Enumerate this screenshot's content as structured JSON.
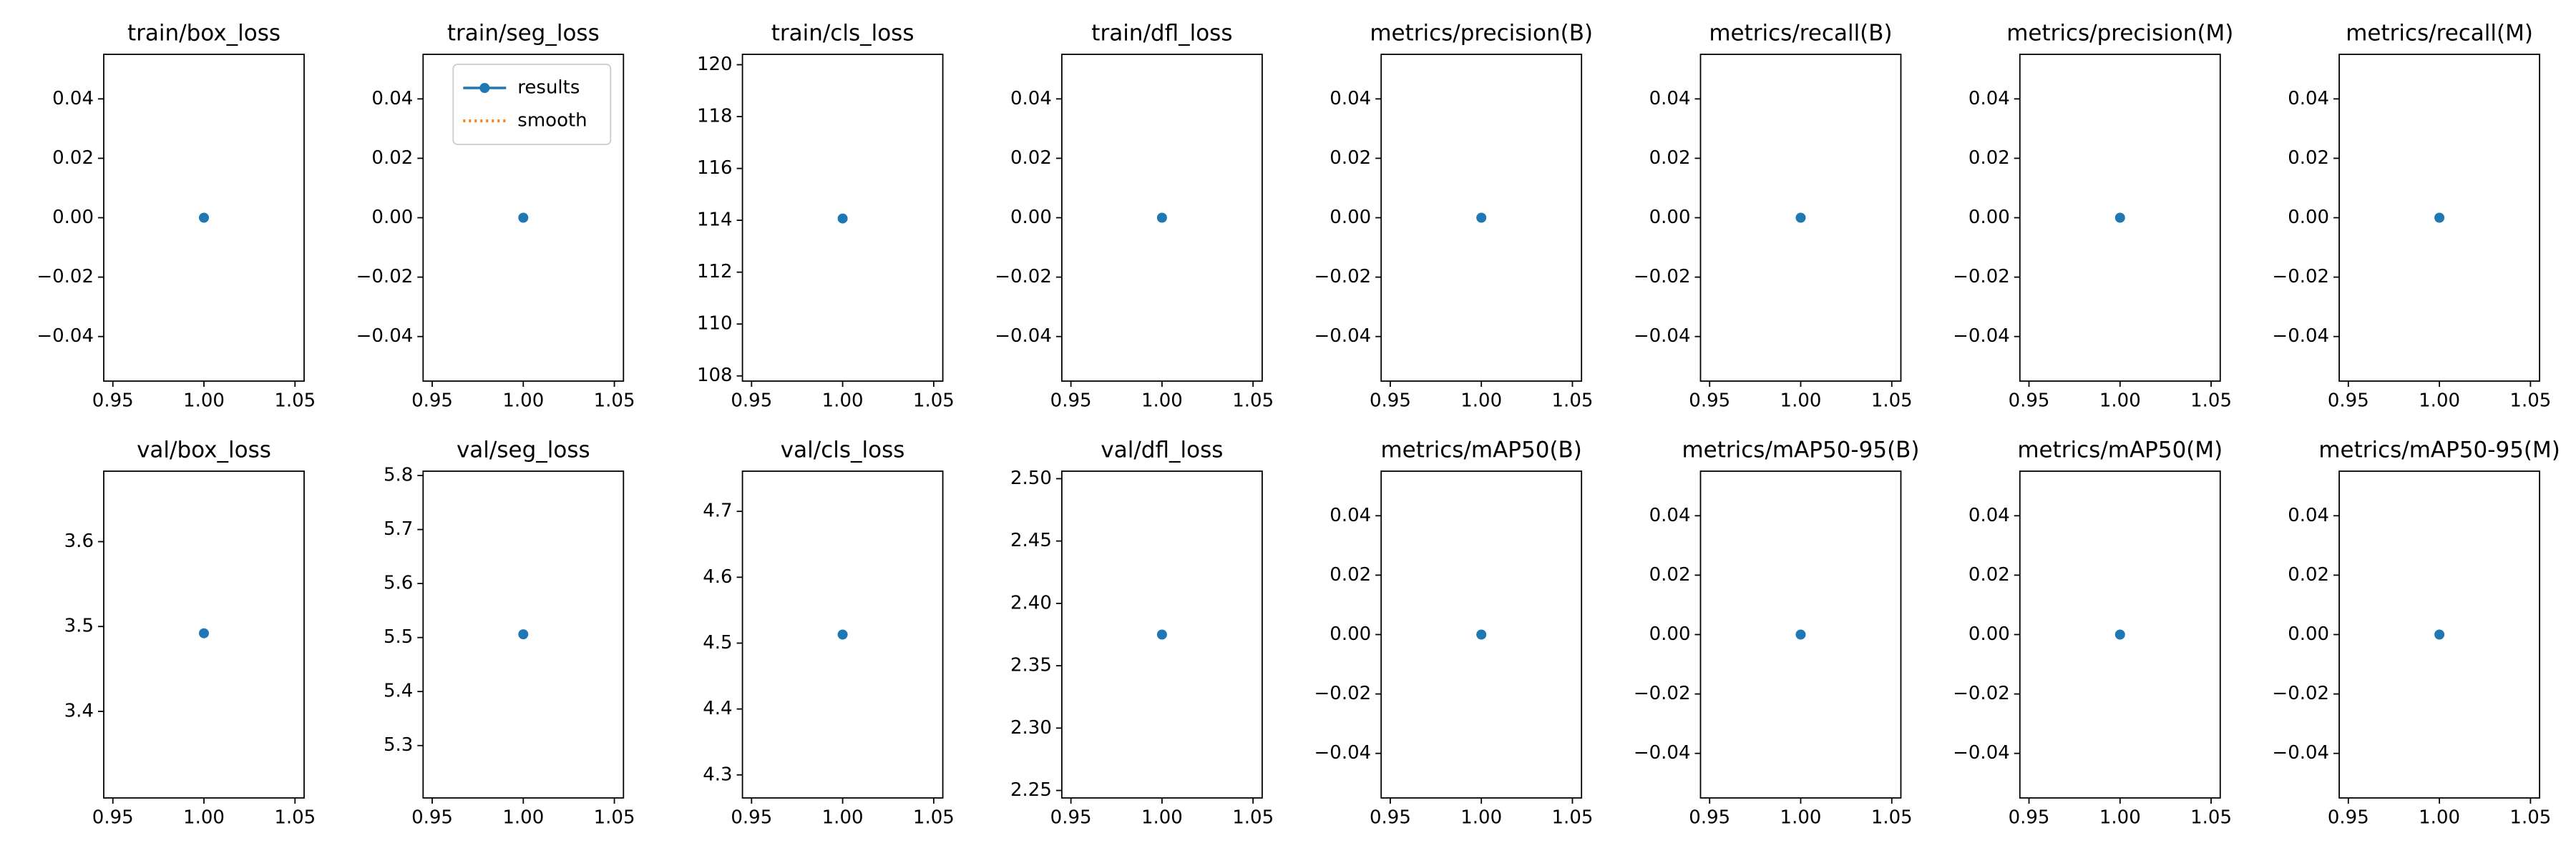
{
  "chart_data": [
    {
      "type": "scatter",
      "title": "train/box_loss",
      "x": [
        1
      ],
      "values": [
        0
      ],
      "color": "#1f77b4",
      "xlim": [
        0.945,
        1.055
      ],
      "xticks": [
        0.95,
        {
          "value": 1,
          "label": "1.00"
        },
        1.05
      ],
      "ylim": [
        -0.055,
        0.055
      ],
      "yticks": [
        {
          "value": -0.04,
          "label": "−0.04"
        },
        {
          "value": -0.02,
          "label": "−0.02"
        },
        {
          "value": 0,
          "label": "0.00"
        },
        0.02,
        0.04
      ]
    },
    {
      "type": "scatter",
      "title": "train/seg_loss",
      "x": [
        1
      ],
      "series": [
        {
          "name": "results",
          "color": "#1f77b4",
          "values": [
            0
          ]
        },
        {
          "name": "smooth",
          "color": "#ff7f0e",
          "values": [
            0
          ]
        }
      ],
      "legend": "upper right",
      "xlim": [
        0.945,
        1.055
      ],
      "xticks": [
        0.95,
        {
          "value": 1,
          "label": "1.00"
        },
        1.05
      ],
      "ylim": [
        -0.055,
        0.055
      ],
      "yticks": [
        {
          "value": -0.04,
          "label": "−0.04"
        },
        {
          "value": -0.02,
          "label": "−0.02"
        },
        {
          "value": 0,
          "label": "0.00"
        },
        0.02,
        0.04
      ]
    },
    {
      "type": "scatter",
      "title": "train/cls_loss",
      "x": [
        1
      ],
      "values": [
        114.07
      ],
      "color": "#1f77b4",
      "xlim": [
        0.945,
        1.055
      ],
      "xticks": [
        0.95,
        {
          "value": 1,
          "label": "1.00"
        },
        1.05
      ],
      "ylim": [
        107.8,
        120.4
      ],
      "yticks": [
        108,
        110,
        112,
        114,
        116,
        118,
        120
      ]
    },
    {
      "type": "scatter",
      "title": "train/dfl_loss",
      "x": [
        1
      ],
      "values": [
        0
      ],
      "color": "#1f77b4",
      "xlim": [
        0.945,
        1.055
      ],
      "xticks": [
        0.95,
        {
          "value": 1,
          "label": "1.00"
        },
        1.05
      ],
      "ylim": [
        -0.055,
        0.055
      ],
      "yticks": [
        {
          "value": -0.04,
          "label": "−0.04"
        },
        {
          "value": -0.02,
          "label": "−0.02"
        },
        {
          "value": 0,
          "label": "0.00"
        },
        0.02,
        0.04
      ]
    },
    {
      "type": "scatter",
      "title": "metrics/precision(B)",
      "x": [
        1
      ],
      "values": [
        0
      ],
      "color": "#1f77b4",
      "xlim": [
        0.945,
        1.055
      ],
      "xticks": [
        0.95,
        {
          "value": 1,
          "label": "1.00"
        },
        1.05
      ],
      "ylim": [
        -0.055,
        0.055
      ],
      "yticks": [
        {
          "value": -0.04,
          "label": "−0.04"
        },
        {
          "value": -0.02,
          "label": "−0.02"
        },
        {
          "value": 0,
          "label": "0.00"
        },
        0.02,
        0.04
      ]
    },
    {
      "type": "scatter",
      "title": "metrics/recall(B)",
      "x": [
        1
      ],
      "values": [
        0
      ],
      "color": "#1f77b4",
      "xlim": [
        0.945,
        1.055
      ],
      "xticks": [
        0.95,
        {
          "value": 1,
          "label": "1.00"
        },
        1.05
      ],
      "ylim": [
        -0.055,
        0.055
      ],
      "yticks": [
        {
          "value": -0.04,
          "label": "−0.04"
        },
        {
          "value": -0.02,
          "label": "−0.02"
        },
        {
          "value": 0,
          "label": "0.00"
        },
        0.02,
        0.04
      ]
    },
    {
      "type": "scatter",
      "title": "metrics/precision(M)",
      "x": [
        1
      ],
      "values": [
        0
      ],
      "color": "#1f77b4",
      "xlim": [
        0.945,
        1.055
      ],
      "xticks": [
        0.95,
        {
          "value": 1,
          "label": "1.00"
        },
        1.05
      ],
      "ylim": [
        -0.055,
        0.055
      ],
      "yticks": [
        {
          "value": -0.04,
          "label": "−0.04"
        },
        {
          "value": -0.02,
          "label": "−0.02"
        },
        {
          "value": 0,
          "label": "0.00"
        },
        0.02,
        0.04
      ]
    },
    {
      "type": "scatter",
      "title": "metrics/recall(M)",
      "x": [
        1
      ],
      "values": [
        0
      ],
      "color": "#1f77b4",
      "xlim": [
        0.945,
        1.055
      ],
      "xticks": [
        0.95,
        {
          "value": 1,
          "label": "1.00"
        },
        1.05
      ],
      "ylim": [
        -0.055,
        0.055
      ],
      "yticks": [
        {
          "value": -0.04,
          "label": "−0.04"
        },
        {
          "value": -0.02,
          "label": "−0.02"
        },
        {
          "value": 0,
          "label": "0.00"
        },
        0.02,
        0.04
      ]
    },
    {
      "type": "scatter",
      "title": "val/box_loss",
      "x": [
        1
      ],
      "values": [
        3.492
      ],
      "color": "#1f77b4",
      "xlim": [
        0.945,
        1.055
      ],
      "xticks": [
        0.95,
        {
          "value": 1,
          "label": "1.00"
        },
        1.05
      ],
      "ylim": [
        3.298,
        3.683
      ],
      "yticks": [
        3.4,
        3.5,
        3.6
      ]
    },
    {
      "type": "scatter",
      "title": "val/seg_loss",
      "x": [
        1
      ],
      "values": [
        5.506
      ],
      "color": "#1f77b4",
      "xlim": [
        0.945,
        1.055
      ],
      "xticks": [
        0.95,
        {
          "value": 1,
          "label": "1.00"
        },
        1.05
      ],
      "ylim": [
        5.203,
        5.808
      ],
      "yticks": [
        5.3,
        5.4,
        5.5,
        5.6,
        5.7,
        5.8
      ]
    },
    {
      "type": "scatter",
      "title": "val/cls_loss",
      "x": [
        1
      ],
      "values": [
        4.513
      ],
      "color": "#1f77b4",
      "xlim": [
        0.945,
        1.055
      ],
      "xticks": [
        0.95,
        {
          "value": 1,
          "label": "1.00"
        },
        1.05
      ],
      "ylim": [
        4.265,
        4.761
      ],
      "yticks": [
        4.3,
        4.4,
        4.5,
        4.6,
        4.7
      ]
    },
    {
      "type": "scatter",
      "title": "val/dfl_loss",
      "x": [
        1
      ],
      "values": [
        2.375
      ],
      "color": "#1f77b4",
      "xlim": [
        0.945,
        1.055
      ],
      "xticks": [
        0.95,
        {
          "value": 1,
          "label": "1.00"
        },
        1.05
      ],
      "ylim": [
        2.244,
        2.506
      ],
      "yticks": [
        2.25,
        {
          "value": 2.3,
          "label": "2.30"
        },
        2.35,
        {
          "value": 2.4,
          "label": "2.40"
        },
        2.45,
        {
          "value": 2.5,
          "label": "2.50"
        }
      ]
    },
    {
      "type": "scatter",
      "title": "metrics/mAP50(B)",
      "x": [
        1
      ],
      "values": [
        0
      ],
      "color": "#1f77b4",
      "xlim": [
        0.945,
        1.055
      ],
      "xticks": [
        0.95,
        {
          "value": 1,
          "label": "1.00"
        },
        1.05
      ],
      "ylim": [
        -0.055,
        0.055
      ],
      "yticks": [
        {
          "value": -0.04,
          "label": "−0.04"
        },
        {
          "value": -0.02,
          "label": "−0.02"
        },
        {
          "value": 0,
          "label": "0.00"
        },
        0.02,
        0.04
      ]
    },
    {
      "type": "scatter",
      "title": "metrics/mAP50-95(B)",
      "x": [
        1
      ],
      "values": [
        0
      ],
      "color": "#1f77b4",
      "xlim": [
        0.945,
        1.055
      ],
      "xticks": [
        0.95,
        {
          "value": 1,
          "label": "1.00"
        },
        1.05
      ],
      "ylim": [
        -0.055,
        0.055
      ],
      "yticks": [
        {
          "value": -0.04,
          "label": "−0.04"
        },
        {
          "value": -0.02,
          "label": "−0.02"
        },
        {
          "value": 0,
          "label": "0.00"
        },
        0.02,
        0.04
      ]
    },
    {
      "type": "scatter",
      "title": "metrics/mAP50(M)",
      "x": [
        1
      ],
      "values": [
        0
      ],
      "color": "#1f77b4",
      "xlim": [
        0.945,
        1.055
      ],
      "xticks": [
        0.95,
        {
          "value": 1,
          "label": "1.00"
        },
        1.05
      ],
      "ylim": [
        -0.055,
        0.055
      ],
      "yticks": [
        {
          "value": -0.04,
          "label": "−0.04"
        },
        {
          "value": -0.02,
          "label": "−0.02"
        },
        {
          "value": 0,
          "label": "0.00"
        },
        0.02,
        0.04
      ]
    },
    {
      "type": "scatter",
      "title": "metrics/mAP50-95(M)",
      "x": [
        1
      ],
      "values": [
        0
      ],
      "color": "#1f77b4",
      "xlim": [
        0.945,
        1.055
      ],
      "xticks": [
        0.95,
        {
          "value": 1,
          "label": "1.00"
        },
        1.05
      ],
      "ylim": [
        -0.055,
        0.055
      ],
      "yticks": [
        {
          "value": -0.04,
          "label": "−0.04"
        },
        {
          "value": -0.02,
          "label": "−0.02"
        },
        {
          "value": 0,
          "label": "0.00"
        },
        0.02,
        0.04
      ]
    }
  ]
}
